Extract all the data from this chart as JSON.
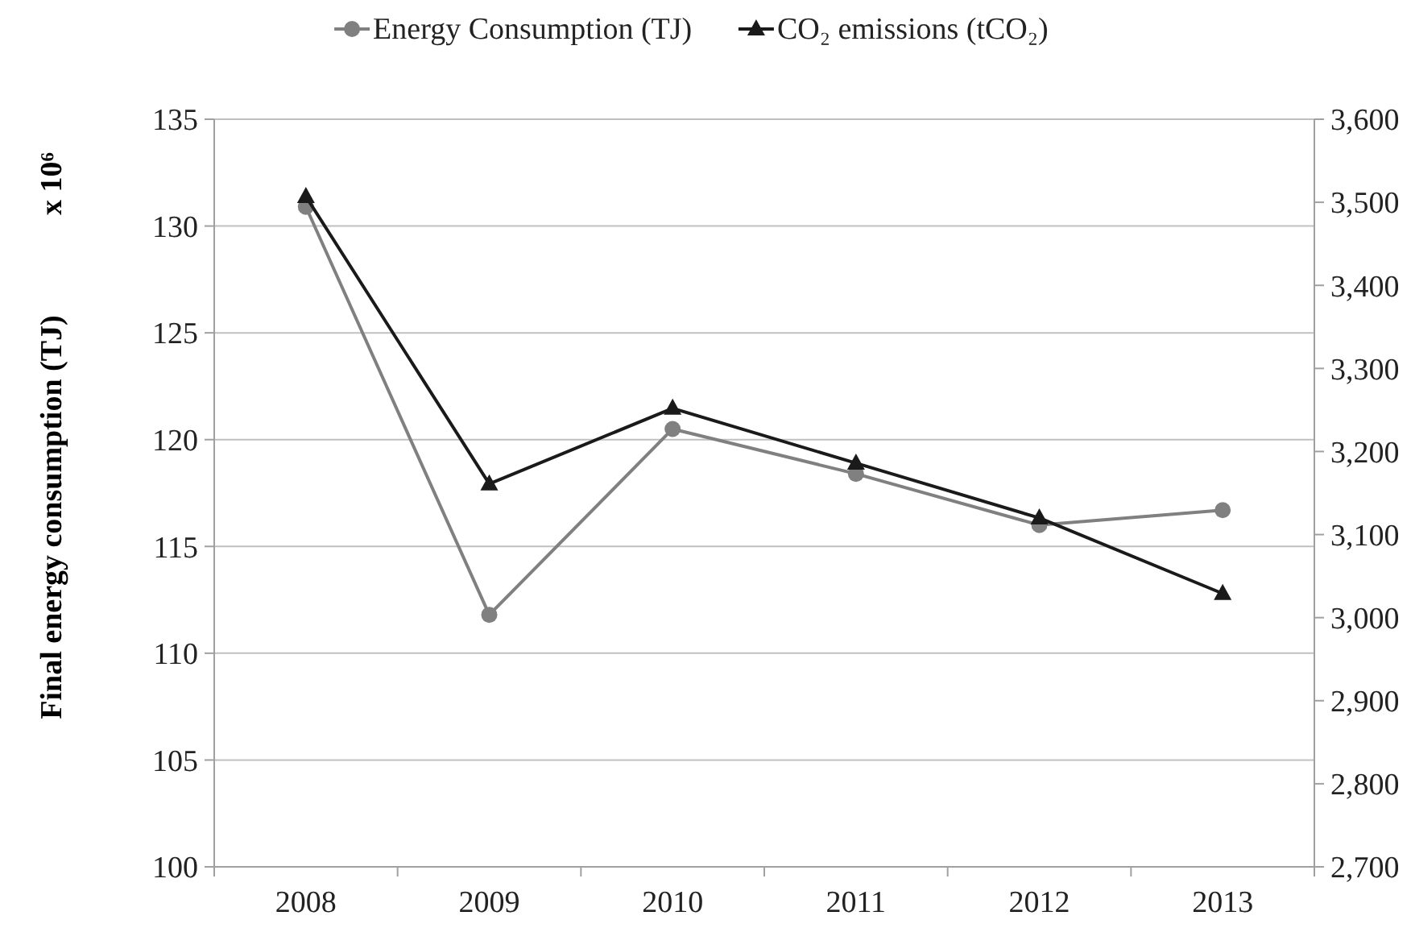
{
  "chart_data": {
    "type": "line",
    "categories": [
      "2008",
      "2009",
      "2010",
      "2011",
      "2012",
      "2013"
    ],
    "ylabel": "Final energy consumption (TJ)",
    "annotations": [
      "x 10⁶"
    ],
    "ylim": [
      100,
      135
    ],
    "yticks": [
      100,
      105,
      110,
      115,
      120,
      125,
      130,
      135
    ],
    "y2lim": [
      2700,
      3600
    ],
    "y2ticks": [
      {
        "value": 2700,
        "label": "2,700"
      },
      {
        "value": 2800,
        "label": "2,800"
      },
      {
        "value": 2900,
        "label": "2,900"
      },
      {
        "value": 3000,
        "label": "3,000"
      },
      {
        "value": 3100,
        "label": "3,100"
      },
      {
        "value": 3200,
        "label": "3,200"
      },
      {
        "value": 3300,
        "label": "3,300"
      },
      {
        "value": 3400,
        "label": "3,400"
      },
      {
        "value": 3500,
        "label": "3,500"
      },
      {
        "value": 3600,
        "label": "3,600"
      }
    ],
    "grid": "y",
    "legend": "top",
    "series": [
      {
        "name": "Energy Consumption (TJ)",
        "color": "#808080",
        "marker": "circle",
        "values": [
          130.9,
          111.8,
          120.5,
          118.4,
          116.0,
          116.7
        ]
      },
      {
        "name": "CO₂ emissions (tCO₂)",
        "color": "#1a1a1a",
        "marker": "triangle",
        "axis": "y2",
        "values": [
          3507,
          3161,
          3252,
          3186,
          3120,
          3029
        ]
      }
    ]
  }
}
